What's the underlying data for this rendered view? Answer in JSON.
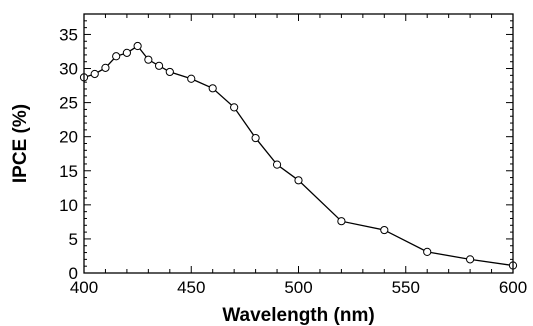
{
  "chart_data": {
    "type": "line",
    "xlabel": "Wavelength (nm)",
    "ylabel": "IPCE (%)",
    "xlim": [
      400,
      600
    ],
    "ylim": [
      0,
      38
    ],
    "xticks": [
      400,
      450,
      500,
      550,
      600
    ],
    "yticks": [
      0,
      5,
      10,
      15,
      20,
      25,
      30,
      35
    ],
    "grid": false,
    "series": [
      {
        "marker": "open-circle",
        "color": "#000000",
        "x": [
          400,
          405,
          410,
          415,
          420,
          425,
          430,
          435,
          440,
          450,
          460,
          470,
          480,
          490,
          500,
          520,
          540,
          560,
          580,
          600
        ],
        "y": [
          28.7,
          29.2,
          30.1,
          31.8,
          32.3,
          33.3,
          31.3,
          30.4,
          29.5,
          28.5,
          27.1,
          24.3,
          19.8,
          15.9,
          13.6,
          7.6,
          6.3,
          3.1,
          2.0,
          1.1
        ]
      }
    ]
  }
}
